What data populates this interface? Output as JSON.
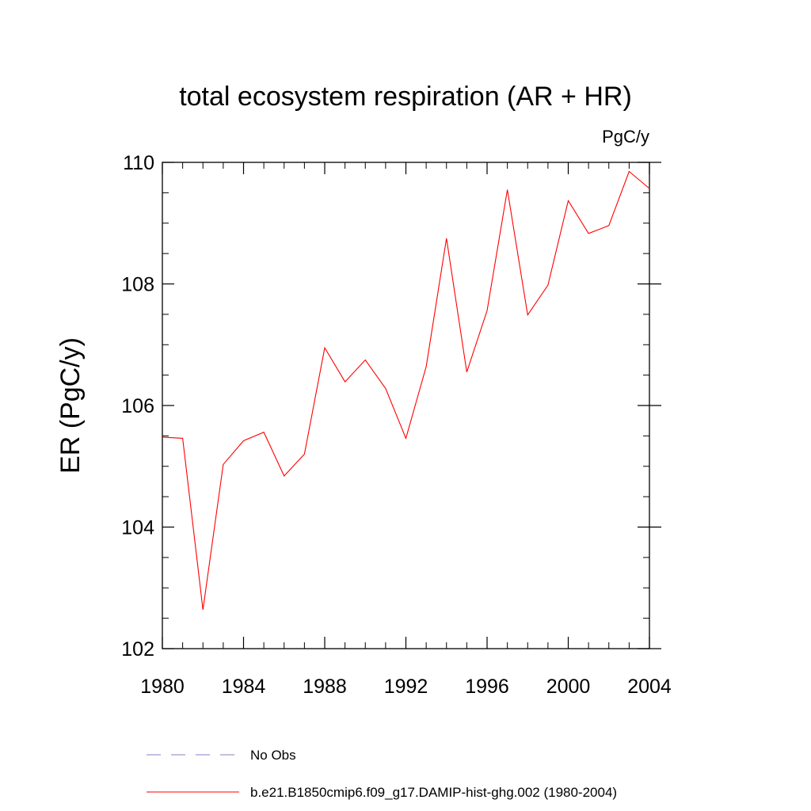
{
  "chart_data": {
    "type": "line",
    "title": "total ecosystem respiration (AR + HR)",
    "units_label": "PgC/y",
    "ylabel": "ER  (PgC/y)",
    "xlabel": "",
    "xlim": [
      1980,
      2004
    ],
    "ylim": [
      102,
      110
    ],
    "x_ticks": [
      1980,
      1984,
      1988,
      1992,
      1996,
      2000,
      2004
    ],
    "y_ticks": [
      102,
      104,
      106,
      108,
      110
    ],
    "x_tick_labels": [
      "1980",
      "1984",
      "1988",
      "1992",
      "1996",
      "2000",
      "2004"
    ],
    "y_tick_labels": [
      "102",
      "104",
      "106",
      "108",
      "110"
    ],
    "grid": false,
    "legend_position": "bottom",
    "x": [
      1980,
      1981,
      1982,
      1983,
      1984,
      1985,
      1986,
      1987,
      1988,
      1989,
      1990,
      1991,
      1992,
      1993,
      1994,
      1995,
      1996,
      1997,
      1998,
      1999,
      2000,
      2001,
      2002,
      2003,
      2004
    ],
    "series": [
      {
        "name": "b.e21.B1850cmip6.f09_g17.DAMIP-hist-ghg.002 (1980-2004)",
        "color": "#ff0000",
        "style": "solid",
        "values": [
          105.48,
          105.46,
          102.64,
          105.03,
          105.42,
          105.56,
          104.84,
          105.2,
          106.95,
          106.39,
          106.75,
          106.28,
          105.46,
          106.64,
          108.75,
          106.55,
          107.56,
          109.55,
          107.49,
          107.98,
          109.37,
          108.83,
          108.96,
          109.85,
          109.57
        ]
      }
    ],
    "legend": [
      {
        "label": "No Obs",
        "color": "#8080c8",
        "style": "dashed"
      },
      {
        "label": "b.e21.B1850cmip6.f09_g17.DAMIP-hist-ghg.002 (1980-2004)",
        "color": "#ff0000",
        "style": "solid"
      }
    ]
  }
}
